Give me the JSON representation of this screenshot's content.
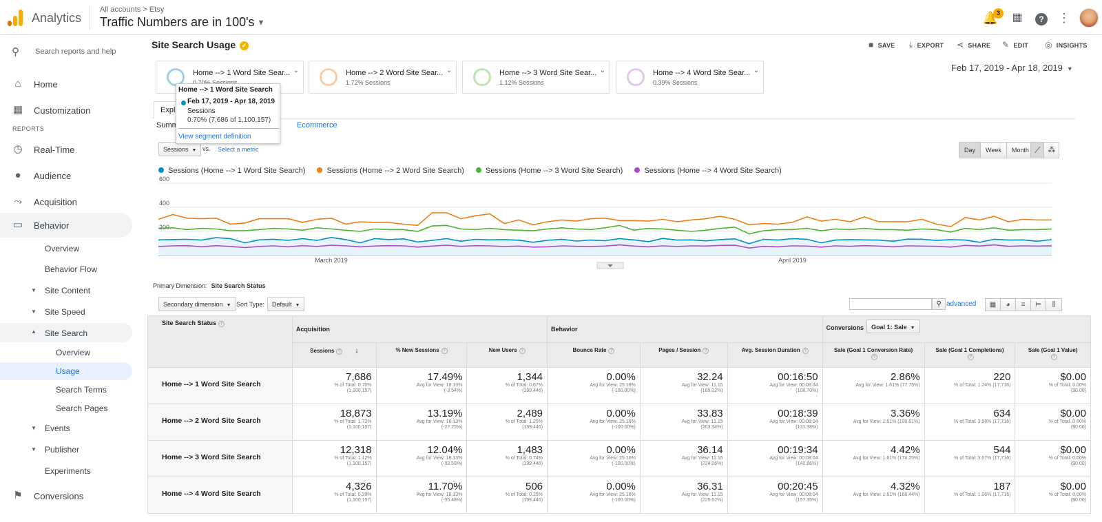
{
  "header": {
    "app_name": "Analytics",
    "breadcrumb": "All accounts > Etsy",
    "property": "Traffic Numbers are in 100's",
    "notifications": "3",
    "icons": [
      "bell-icon",
      "apps-grid-icon",
      "help-icon",
      "more-vert-icon"
    ]
  },
  "sidebar": {
    "search": "Search reports and help",
    "home": "Home",
    "customization": "Customization",
    "reports_label": "REPORTS",
    "realtime": "Real-Time",
    "audience": "Audience",
    "acquisition": "Acquisition",
    "behavior": "Behavior",
    "behavior_sub": {
      "overview": "Overview",
      "flow": "Behavior Flow",
      "site_content": "Site Content",
      "site_speed": "Site Speed",
      "site_search": "Site Search",
      "ss_overview": "Overview",
      "usage": "Usage",
      "search_terms": "Search Terms",
      "search_pages": "Search Pages",
      "events": "Events",
      "publisher": "Publisher",
      "experiments": "Experiments"
    },
    "conversions": "Conversions"
  },
  "page": {
    "title": "Site Search Usage",
    "toolbar": {
      "save": "SAVE",
      "export": "EXPORT",
      "share": "SHARE",
      "edit": "EDIT",
      "insights": "INSIGHTS"
    },
    "date_range": "Feb 17, 2019 - Apr 18, 2019"
  },
  "segments": [
    {
      "name": "Home --> 1 Word Site Sear...",
      "pct": "0.70% Sessions",
      "color": "#058dc7"
    },
    {
      "name": "Home --> 2 Word Site Sear...",
      "pct": "1.72% Sessions",
      "color": "#ed7e17"
    },
    {
      "name": "Home --> 3 Word Site Sear...",
      "pct": "1.12% Sessions",
      "color": "#50b432"
    },
    {
      "name": "Home --> 4 Word Site Sear...",
      "pct": "0.39% Sessions",
      "color": "#af49c5"
    }
  ],
  "tabs": {
    "explorer": "Explo",
    "summary": "Summ",
    "ecommerce": "Ecommerce"
  },
  "tooltip": {
    "title": "Home --> 1 Word Site Search",
    "date": "Feb 17, 2019 - Apr 18, 2019",
    "metric": "Sessions",
    "value": "0.70% (7,686 of 1,100,157)",
    "link": "View segment definition"
  },
  "controls": {
    "metric": "Sessions",
    "vs": "vs.",
    "select_metric": "Select a metric",
    "day": "Day",
    "week": "Week",
    "month": "Month",
    "primary_dim_label": "Primary Dimension:",
    "primary_dim_value": "Site Search Status",
    "secondary": "Secondary dimension",
    "sort_type_label": "Sort Type:",
    "sort_default": "Default",
    "advanced": "advanced"
  },
  "chart_data": {
    "type": "line",
    "x_labels": [
      "March 2019",
      "April 2019"
    ],
    "ylim": [
      0,
      600
    ],
    "yticks": [
      "600",
      "400",
      "200"
    ],
    "series": [
      {
        "name": "Sessions (Home --> 1 Word Site Search)",
        "color": "#058dc7",
        "values": [
          130,
          132,
          134,
          128,
          148,
          140,
          105,
          130,
          135,
          126,
          140,
          125,
          150,
          132,
          106,
          140,
          132,
          138,
          112,
          126,
          140,
          118,
          134,
          130,
          132,
          127,
          110,
          126,
          135,
          120,
          128,
          123,
          140,
          130,
          115,
          142,
          128,
          130,
          122,
          132,
          138,
          98,
          134,
          128,
          140,
          135,
          105,
          128,
          132,
          130,
          128,
          118,
          136,
          135,
          125,
          132,
          128,
          110,
          135,
          128,
          130,
          118,
          132
        ]
      },
      {
        "name": "Sessions (Home --> 2 Word Site Search)",
        "color": "#ed7e17",
        "values": [
          300,
          340,
          310,
          305,
          310,
          260,
          270,
          305,
          305,
          305,
          275,
          300,
          310,
          260,
          280,
          275,
          275,
          260,
          250,
          355,
          355,
          305,
          330,
          345,
          265,
          295,
          255,
          280,
          295,
          285,
          305,
          310,
          290,
          290,
          285,
          300,
          280,
          295,
          305,
          325,
          300,
          255,
          265,
          260,
          275,
          320,
          285,
          300,
          280,
          320,
          280,
          280,
          280,
          300,
          260,
          240,
          315,
          295,
          325,
          280,
          300,
          295,
          295
        ]
      },
      {
        "name": "Sessions (Home --> 3 Word Site Search)",
        "color": "#50b432",
        "values": [
          225,
          230,
          215,
          225,
          220,
          205,
          205,
          215,
          225,
          220,
          210,
          230,
          220,
          210,
          200,
          220,
          215,
          215,
          200,
          245,
          250,
          220,
          215,
          225,
          215,
          210,
          205,
          220,
          230,
          220,
          215,
          230,
          250,
          210,
          225,
          220,
          210,
          200,
          210,
          225,
          235,
          180,
          205,
          215,
          215,
          225,
          205,
          220,
          215,
          225,
          215,
          215,
          210,
          220,
          215,
          195,
          225,
          215,
          230,
          210,
          215,
          215,
          220
        ]
      },
      {
        "name": "Sessions (Home --> 4 Word Site Search)",
        "color": "#af49c5",
        "values": [
          75,
          80,
          82,
          72,
          82,
          75,
          66,
          75,
          80,
          72,
          82,
          75,
          86,
          80,
          72,
          78,
          82,
          80,
          70,
          78,
          86,
          76,
          82,
          80,
          74,
          78,
          70,
          72,
          80,
          76,
          75,
          78,
          88,
          78,
          72,
          80,
          74,
          80,
          78,
          84,
          86,
          62,
          76,
          72,
          80,
          78,
          70,
          80,
          76,
          82,
          78,
          72,
          80,
          78,
          76,
          70,
          84,
          78,
          88,
          76,
          80,
          78,
          80
        ]
      }
    ]
  },
  "table": {
    "groups": {
      "acquisition": "Acquisition",
      "behavior": "Behavior",
      "conversions": "Conversions",
      "goal_select": "Goal 1: Sale"
    },
    "dim_header": "Site Search Status",
    "columns": [
      "Sessions",
      "% New Sessions",
      "New Users",
      "Bounce Rate",
      "Pages / Session",
      "Avg. Session Duration",
      "Sale (Goal 1 Conversion Rate)",
      "Sale (Goal 1 Completions)",
      "Sale (Goal 1 Value)"
    ],
    "rows": [
      {
        "label": "Home --> 1 Word Site Search",
        "cells": [
          [
            "7,686",
            "% of Total: 0.70%",
            "(1,100,157)"
          ],
          [
            "17.49%",
            "Avg for View: 18.13%",
            "(-3.54%)"
          ],
          [
            "1,344",
            "% of Total: 0.67%",
            "(199,446)"
          ],
          [
            "0.00%",
            "Avg for View: 25.16%",
            "(-100.00%)"
          ],
          [
            "32.24",
            "Avg for View: 11.15",
            "(189.02%)"
          ],
          [
            "00:16:50",
            "Avg for View: 00:08:04",
            "(108.70%)"
          ],
          [
            "2.86%",
            "Avg for View: 1.61% (77.75%)",
            ""
          ],
          [
            "220",
            "% of Total: 1.24% (17,716)",
            ""
          ],
          [
            "$0.00",
            "% of Total: 0.00%",
            "($0.00)"
          ]
        ]
      },
      {
        "label": "Home --> 2 Word Site Search",
        "cells": [
          [
            "18,873",
            "% of Total: 1.72%",
            "(1,100,157)"
          ],
          [
            "13.19%",
            "Avg for View: 18.13%",
            "(-27.25%)"
          ],
          [
            "2,489",
            "% of Total: 1.25%",
            "(199,446)"
          ],
          [
            "0.00%",
            "Avg for View: 25.16%",
            "(-100.00%)"
          ],
          [
            "33.83",
            "Avg for View: 11.15",
            "(203.34%)"
          ],
          [
            "00:18:39",
            "Avg for View: 00:08:04",
            "(131.38%)"
          ],
          [
            "3.36%",
            "Avg for View: 1.61% (108.61%)",
            ""
          ],
          [
            "634",
            "% of Total: 3.58% (17,716)",
            ""
          ],
          [
            "$0.00",
            "% of Total: 0.00%",
            "($0.00)"
          ]
        ]
      },
      {
        "label": "Home --> 3 Word Site Search",
        "cells": [
          [
            "12,318",
            "% of Total: 1.12%",
            "(1,100,157)"
          ],
          [
            "12.04%",
            "Avg for View: 18.13%",
            "(-33.59%)"
          ],
          [
            "1,483",
            "% of Total: 0.74%",
            "(199,446)"
          ],
          [
            "0.00%",
            "Avg for View: 25.16%",
            "(-100.00%)"
          ],
          [
            "36.14",
            "Avg for View: 11.15",
            "(224.06%)"
          ],
          [
            "00:19:34",
            "Avg for View: 00:08:04",
            "(142.66%)"
          ],
          [
            "4.42%",
            "Avg for View: 1.61% (174.25%)",
            ""
          ],
          [
            "544",
            "% of Total: 3.07% (17,716)",
            ""
          ],
          [
            "$0.00",
            "% of Total: 0.00%",
            "($0.00)"
          ]
        ]
      },
      {
        "label": "Home --> 4 Word Site Search",
        "cells": [
          [
            "4,326",
            "% of Total: 0.39%",
            "(1,100,157)"
          ],
          [
            "11.70%",
            "Avg for View: 18.13%",
            "(-35.48%)"
          ],
          [
            "506",
            "% of Total: 0.25%",
            "(199,446)"
          ],
          [
            "0.00%",
            "Avg for View: 25.16%",
            "(-100.00%)"
          ],
          [
            "36.31",
            "Avg for View: 11.15",
            "(225.52%)"
          ],
          [
            "00:20:45",
            "Avg for View: 00:08:04",
            "(157.35%)"
          ],
          [
            "4.32%",
            "Avg for View: 1.61% (168.44%)",
            ""
          ],
          [
            "187",
            "% of Total: 1.06% (17,716)",
            ""
          ],
          [
            "$0.00",
            "% of Total: 0.00%",
            "($0.00)"
          ]
        ]
      }
    ]
  }
}
